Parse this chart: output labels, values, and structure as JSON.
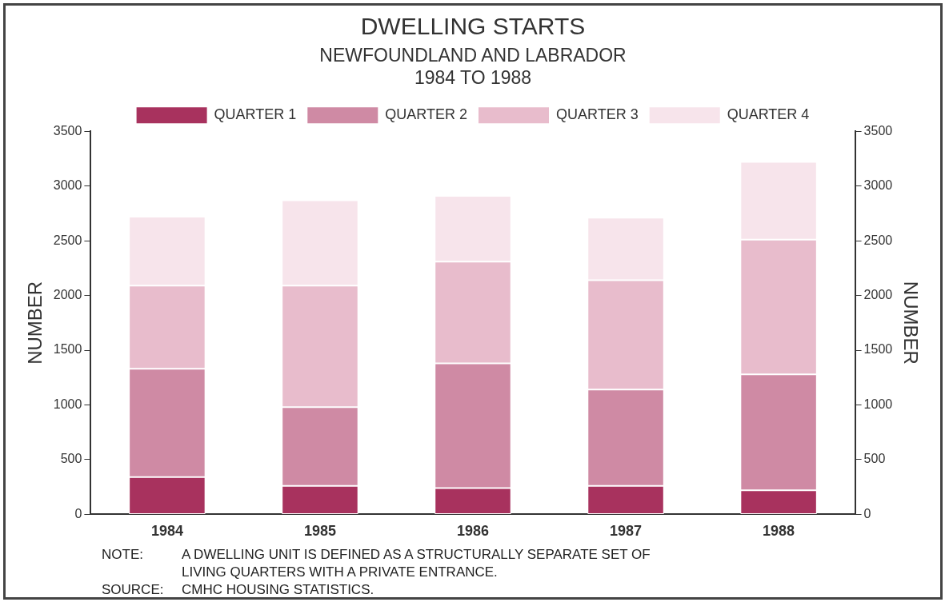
{
  "chart_data": {
    "type": "bar",
    "title": "DWELLING STARTS",
    "subtitle": "NEWFOUNDLAND AND LABRADOR\n1984 TO 1988",
    "ylabel": "NUMBER",
    "y2label": "NUMBER",
    "categories": [
      "1984",
      "1985",
      "1986",
      "1987",
      "1988"
    ],
    "stacked": true,
    "legend": "top",
    "series": [
      {
        "name": "QUARTER 1",
        "color": "#a8325e",
        "values": [
          340,
          260,
          240,
          260,
          220
        ]
      },
      {
        "name": "QUARTER 2",
        "color": "#cf8aa4",
        "values": [
          990,
          720,
          1140,
          880,
          1060
        ]
      },
      {
        "name": "QUARTER 3",
        "color": "#e8bccc",
        "values": [
          760,
          1110,
          930,
          1000,
          1230
        ]
      },
      {
        "name": "QUARTER 4",
        "color": "#f7e4eb",
        "values": [
          630,
          780,
          600,
          570,
          710
        ]
      }
    ],
    "ylim": [
      0,
      3500
    ],
    "yticks": [
      0,
      500,
      1000,
      1500,
      2000,
      2500,
      3000,
      3500
    ],
    "y2lim": [
      0,
      3500
    ],
    "y2ticks": [
      0,
      500,
      1000,
      1500,
      2000,
      2500,
      3000,
      3500
    ],
    "annotations": [
      "NOTE:\tA DWELLING UNIT IS DEFINED AS A STRUCTURALLY SEPARATE SET OF\nLIVING QUARTERS WITH A PRIVATE ENTRANCE.",
      "SOURCE:\tCMHC HOUSING STATISTICS."
    ]
  }
}
